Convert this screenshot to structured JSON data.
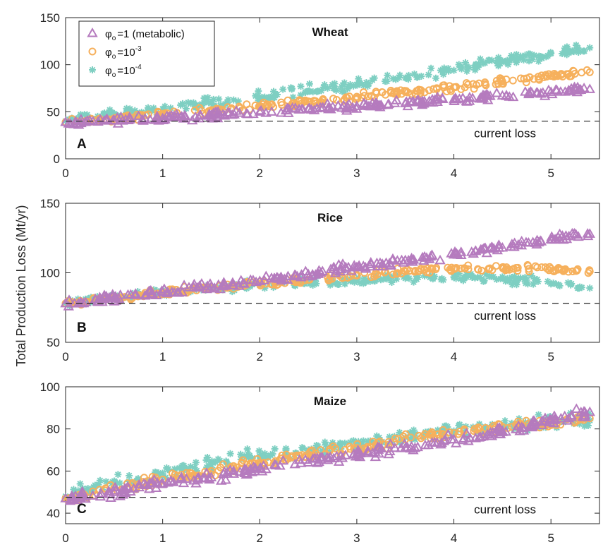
{
  "chart_data": {
    "type": "scatter",
    "ylabel": "Total Production Loss (Mt/yr)",
    "xlim": [
      0,
      5.5
    ],
    "xticks": [
      0,
      1,
      2,
      3,
      4,
      5
    ],
    "legend": {
      "placement": "top-left of panel A",
      "entries": [
        {
          "key": "metabolic",
          "symbol": "triangle",
          "color": "#B57BBE",
          "prefix": "φ",
          "sub": "o",
          "text": "=1 (metabolic)",
          "sup": ""
        },
        {
          "key": "e3",
          "symbol": "circle",
          "color": "#F6B05C",
          "prefix": "φ",
          "sub": "o",
          "text": "=10",
          "sup": "-3"
        },
        {
          "key": "e4",
          "symbol": "asterisk",
          "color": "#7ECFC2",
          "prefix": "φ",
          "sub": "o",
          "text": "=10",
          "sup": "-4"
        }
      ]
    },
    "panels": [
      {
        "letter": "A",
        "title": "Wheat",
        "ylim": [
          0,
          150
        ],
        "yticks": [
          0,
          50,
          100,
          150
        ],
        "current_loss": 40,
        "current_loss_label": "current loss",
        "series": [
          {
            "name": "φo=1 (metabolic)",
            "key": "metabolic",
            "x": [
              0,
              0.5,
              1,
              1.5,
              2,
              2.5,
              3,
              3.5,
              4,
              4.5,
              5,
              5.4
            ],
            "y": [
              39,
              41,
              43,
              46,
              50,
              53,
              56,
              59,
              63,
              67,
              71,
              74
            ],
            "spread": 3
          },
          {
            "name": "φo=10^-3",
            "key": "e3",
            "x": [
              0,
              0.5,
              1,
              1.5,
              2,
              2.5,
              3,
              3.5,
              4,
              4.5,
              5,
              5.4
            ],
            "y": [
              39,
              43,
              47,
              51,
              56,
              61,
              66,
              71,
              76,
              82,
              88,
              92
            ],
            "spread": 3
          },
          {
            "name": "φo=10^-4",
            "key": "e4",
            "x": [
              0,
              0.5,
              1,
              1.5,
              2,
              2.5,
              3,
              3.5,
              4,
              4.5,
              5,
              5.4
            ],
            "y": [
              40,
              46,
              53,
              59,
              66,
              72,
              79,
              86,
              94,
              104,
              112,
              118
            ],
            "spread": 5
          }
        ]
      },
      {
        "letter": "B",
        "title": "Rice",
        "ylim": [
          50,
          150
        ],
        "yticks": [
          50,
          100,
          150
        ],
        "current_loss": 78,
        "current_loss_label": "current loss",
        "series": [
          {
            "name": "φo=1 (metabolic)",
            "key": "metabolic",
            "x": [
              0,
              0.5,
              1,
              1.5,
              2,
              2.5,
              3,
              3.5,
              4,
              4.5,
              5,
              5.4
            ],
            "y": [
              78,
              82,
              86,
              90,
              94,
              99,
              104,
              109,
              113,
              118,
              124,
              128
            ],
            "spread": 2.5
          },
          {
            "name": "φo=10^-3",
            "key": "e3",
            "x": [
              0,
              0.5,
              1,
              1.5,
              2,
              2.5,
              3,
              3.5,
              4,
              4.5,
              5,
              5.4
            ],
            "y": [
              78,
              82,
              86,
              89,
              92,
              95,
              98,
              101,
              103,
              104,
              103,
              101
            ],
            "spread": 2
          },
          {
            "name": "φo=10^-4",
            "key": "e4",
            "x": [
              0,
              0.5,
              1,
              1.5,
              2,
              2.5,
              3,
              3.5,
              4,
              4.5,
              5,
              5.4
            ],
            "y": [
              78,
              82,
              86,
              89,
              91,
              93,
              95,
              96,
              97,
              97,
              92,
              89
            ],
            "spread": 3
          }
        ]
      },
      {
        "letter": "C",
        "title": "Maize",
        "ylim": [
          35,
          100
        ],
        "yticks": [
          40,
          60,
          80,
          100
        ],
        "current_loss": 47.5,
        "current_loss_label": "current loss",
        "series": [
          {
            "name": "φo=1 (metabolic)",
            "key": "metabolic",
            "x": [
              0,
              0.5,
              1,
              1.5,
              2,
              2.5,
              3,
              3.5,
              4,
              4.5,
              5,
              5.4
            ],
            "y": [
              47,
              50,
              54,
              57,
              61,
              64,
              68,
              71,
              75,
              79,
              84,
              88
            ],
            "spread": 2
          },
          {
            "name": "φo=10^-3",
            "key": "e3",
            "x": [
              0,
              0.5,
              1,
              1.5,
              2,
              2.5,
              3,
              3.5,
              4,
              4.5,
              5,
              5.4
            ],
            "y": [
              47,
              52,
              56,
              60,
              64,
              68,
              71,
              75,
              78,
              81,
              83,
              85
            ],
            "spread": 2
          },
          {
            "name": "φo=10^-4",
            "key": "e4",
            "x": [
              0,
              0.5,
              1,
              1.5,
              2,
              2.5,
              3,
              3.5,
              4,
              4.5,
              5,
              5.4
            ],
            "y": [
              48,
              54,
              59,
              63,
              67,
              70,
              73,
              76,
              79,
              81,
              83,
              84
            ],
            "spread": 3
          }
        ]
      }
    ]
  }
}
